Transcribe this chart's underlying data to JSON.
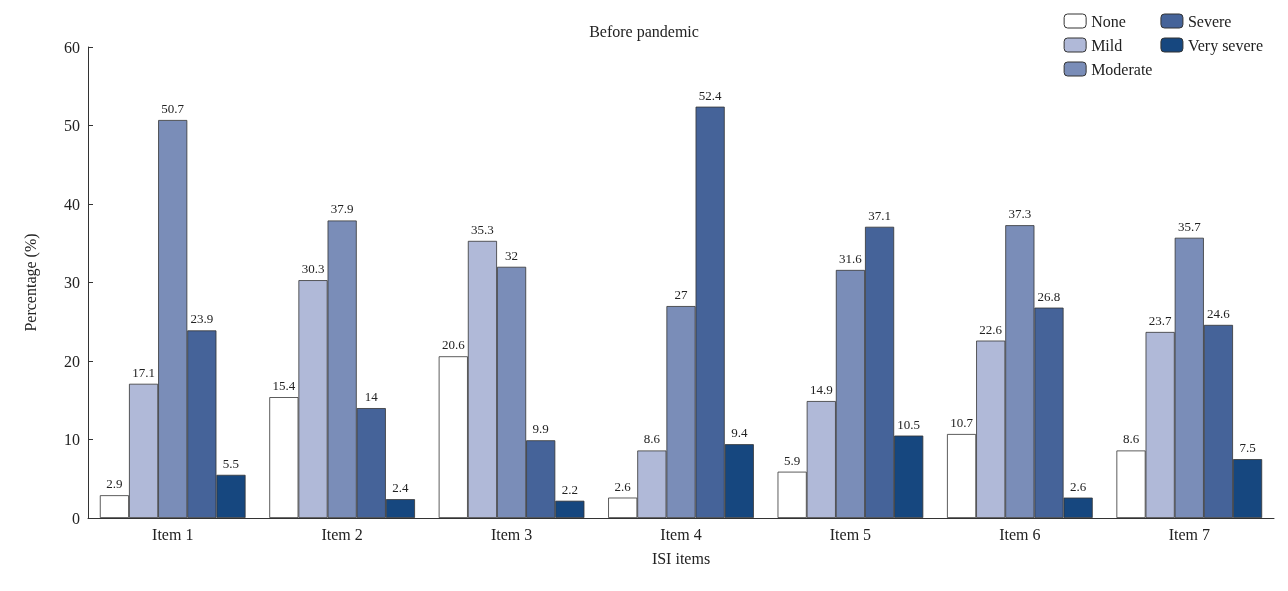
{
  "chart_data": {
    "type": "bar",
    "title": "Before pandemic",
    "xlabel": "ISI items",
    "ylabel": "Percentage (%)",
    "categories": [
      "Item 1",
      "Item 2",
      "Item 3",
      "Item 4",
      "Item 5",
      "Item 6",
      "Item 7"
    ],
    "series": [
      {
        "name": "None",
        "color": "#ffffff",
        "values": [
          2.9,
          15.4,
          20.6,
          2.6,
          5.9,
          10.7,
          8.6
        ]
      },
      {
        "name": "Mild",
        "color": "#b0b9d8",
        "values": [
          17.1,
          30.3,
          35.3,
          8.6,
          14.9,
          22.6,
          23.7
        ]
      },
      {
        "name": "Moderate",
        "color": "#7a8db8",
        "values": [
          50.7,
          37.9,
          32,
          27,
          31.6,
          37.3,
          35.7
        ]
      },
      {
        "name": "Severe",
        "color": "#456399",
        "values": [
          23.9,
          14,
          9.9,
          52.4,
          37.1,
          26.8,
          24.6
        ]
      },
      {
        "name": "Very severe",
        "color": "#16477f",
        "values": [
          5.5,
          2.4,
          2.2,
          9.4,
          10.5,
          2.6,
          7.5
        ]
      }
    ],
    "ylim": [
      0,
      60
    ],
    "yticks": [
      0,
      10,
      20,
      30,
      40,
      50,
      60
    ],
    "data_labels": true,
    "grid": false,
    "legend": "top right"
  }
}
